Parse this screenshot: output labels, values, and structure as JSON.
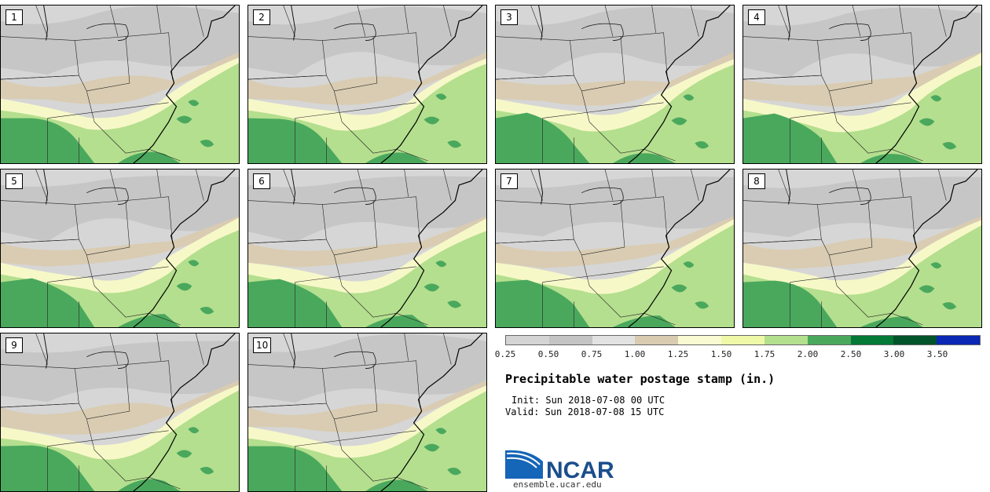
{
  "panels": [
    {
      "label": "1"
    },
    {
      "label": "2"
    },
    {
      "label": "3"
    },
    {
      "label": "4"
    },
    {
      "label": "5"
    },
    {
      "label": "6"
    },
    {
      "label": "7"
    },
    {
      "label": "8"
    },
    {
      "label": "9"
    },
    {
      "label": "10"
    }
  ],
  "legend": {
    "colors": [
      "#d4d4d4",
      "#c4c4c4",
      "#e2e2e2",
      "#d8cbb0",
      "#fafad2",
      "#eef9a8",
      "#b3df8e",
      "#4aa85d",
      "#047a36",
      "#00532a",
      "#0a28b4"
    ],
    "ticks": [
      "0.25",
      "0.50",
      "0.75",
      "1.00",
      "1.25",
      "1.50",
      "1.75",
      "2.00",
      "2.50",
      "3.00",
      "3.50"
    ]
  },
  "title": "Precipitable water postage stamp (in.)",
  "init": "Init: Sun 2018-07-08 00 UTC",
  "valid": "Valid: Sun 2018-07-08 15 UTC",
  "logo": {
    "text": "NCAR",
    "url": "ensemble.ucar.edu"
  }
}
